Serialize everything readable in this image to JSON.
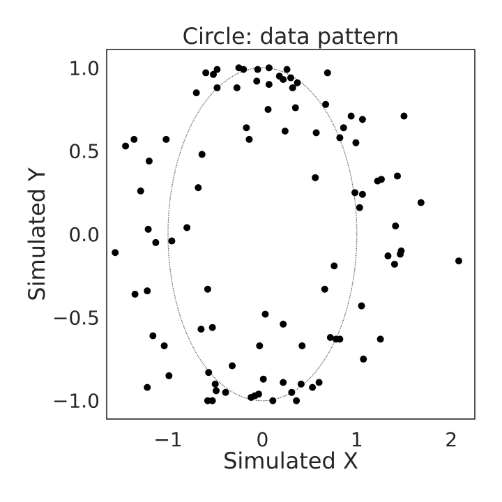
{
  "chart_data": {
    "type": "scatter",
    "title": "Circle: data pattern",
    "xlabel": "Simulated X",
    "ylabel": "Simulated Y",
    "xlim": [
      -1.65,
      2.25
    ],
    "ylim": [
      -1.11,
      1.11
    ],
    "x_ticks": [
      -1,
      0,
      1,
      2
    ],
    "y_ticks": [
      -1.0,
      -0.5,
      0.0,
      0.5,
      1.0
    ],
    "x_tick_labels": [
      "−1",
      "0",
      "1",
      "2"
    ],
    "y_tick_labels": [
      "−1.0",
      "−0.5",
      "0.0",
      "0.5",
      "1.0"
    ],
    "grid": false,
    "legend": "none",
    "colors": {
      "points": "#000000",
      "ellipse": "#555555",
      "axes": "#262626"
    },
    "reference_curve": {
      "shape": "ellipse",
      "cx": 0,
      "cy": 0,
      "rx": 1.0,
      "ry": 1.0,
      "style": "dotted"
    },
    "points": [
      {
        "x": -0.6,
        "y": 0.97
      },
      {
        "x": -0.52,
        "y": 0.96
      },
      {
        "x": -0.48,
        "y": 0.99
      },
      {
        "x": -0.25,
        "y": 1.0
      },
      {
        "x": -0.2,
        "y": 0.99
      },
      {
        "x": -0.05,
        "y": 0.99
      },
      {
        "x": 0.07,
        "y": 1.0
      },
      {
        "x": 0.18,
        "y": 0.95
      },
      {
        "x": 0.26,
        "y": 0.99
      },
      {
        "x": 0.22,
        "y": 0.93
      },
      {
        "x": 0.3,
        "y": 0.94
      },
      {
        "x": 0.37,
        "y": 0.91
      },
      {
        "x": 0.69,
        "y": 0.97
      },
      {
        "x": -0.7,
        "y": 0.85
      },
      {
        "x": -0.48,
        "y": 0.88
      },
      {
        "x": -0.27,
        "y": 0.88
      },
      {
        "x": -0.06,
        "y": 0.92
      },
      {
        "x": 0.07,
        "y": 0.9
      },
      {
        "x": 0.32,
        "y": 0.88
      },
      {
        "x": 0.06,
        "y": 0.75
      },
      {
        "x": 0.35,
        "y": 0.76
      },
      {
        "x": 0.67,
        "y": 0.78
      },
      {
        "x": 0.94,
        "y": 0.71
      },
      {
        "x": 1.06,
        "y": 0.69
      },
      {
        "x": 1.5,
        "y": 0.71
      },
      {
        "x": -0.17,
        "y": 0.64
      },
      {
        "x": 0.24,
        "y": 0.62
      },
      {
        "x": 0.57,
        "y": 0.61
      },
      {
        "x": 0.86,
        "y": 0.64
      },
      {
        "x": 0.82,
        "y": 0.58
      },
      {
        "x": -0.14,
        "y": 0.57
      },
      {
        "x": -1.02,
        "y": 0.57
      },
      {
        "x": -1.36,
        "y": 0.57
      },
      {
        "x": -1.45,
        "y": 0.53
      },
      {
        "x": 0.99,
        "y": 0.55
      },
      {
        "x": -0.64,
        "y": 0.48
      },
      {
        "x": -1.2,
        "y": 0.44
      },
      {
        "x": 0.56,
        "y": 0.34
      },
      {
        "x": 1.22,
        "y": 0.32
      },
      {
        "x": 1.26,
        "y": 0.33
      },
      {
        "x": 1.43,
        "y": 0.35
      },
      {
        "x": -0.68,
        "y": 0.28
      },
      {
        "x": -1.29,
        "y": 0.26
      },
      {
        "x": 0.98,
        "y": 0.25
      },
      {
        "x": 1.06,
        "y": 0.24
      },
      {
        "x": 1.68,
        "y": 0.19
      },
      {
        "x": 1.03,
        "y": 0.16
      },
      {
        "x": 1.41,
        "y": 0.05
      },
      {
        "x": -0.8,
        "y": 0.04
      },
      {
        "x": -1.21,
        "y": 0.03
      },
      {
        "x": -0.96,
        "y": -0.04
      },
      {
        "x": -1.13,
        "y": -0.05
      },
      {
        "x": 1.47,
        "y": -0.1
      },
      {
        "x": 1.46,
        "y": -0.12
      },
      {
        "x": -1.56,
        "y": -0.11
      },
      {
        "x": 1.33,
        "y": -0.13
      },
      {
        "x": 2.08,
        "y": -0.16
      },
      {
        "x": 1.4,
        "y": -0.18
      },
      {
        "x": 0.76,
        "y": -0.19
      },
      {
        "x": -0.58,
        "y": -0.33
      },
      {
        "x": 0.66,
        "y": -0.33
      },
      {
        "x": -1.22,
        "y": -0.34
      },
      {
        "x": -1.35,
        "y": -0.36
      },
      {
        "x": 1.05,
        "y": -0.43
      },
      {
        "x": 0.03,
        "y": -0.48
      },
      {
        "x": 0.22,
        "y": -0.54
      },
      {
        "x": -0.53,
        "y": -0.56
      },
      {
        "x": -0.65,
        "y": -0.57
      },
      {
        "x": 0.72,
        "y": -0.62
      },
      {
        "x": 0.78,
        "y": -0.63
      },
      {
        "x": 0.82,
        "y": -0.63
      },
      {
        "x": 1.25,
        "y": -0.63
      },
      {
        "x": -1.16,
        "y": -0.61
      },
      {
        "x": -1.04,
        "y": -0.67
      },
      {
        "x": -0.03,
        "y": -0.67
      },
      {
        "x": 0.42,
        "y": -0.67
      },
      {
        "x": 1.07,
        "y": -0.75
      },
      {
        "x": -0.32,
        "y": -0.79
      },
      {
        "x": -0.57,
        "y": -0.83
      },
      {
        "x": -0.99,
        "y": -0.85
      },
      {
        "x": 0.01,
        "y": -0.87
      },
      {
        "x": -0.5,
        "y": -0.9
      },
      {
        "x": 0.22,
        "y": -0.89
      },
      {
        "x": 0.41,
        "y": -0.9
      },
      {
        "x": 0.6,
        "y": -0.89
      },
      {
        "x": 0.53,
        "y": -0.92
      },
      {
        "x": -1.22,
        "y": -0.92
      },
      {
        "x": -0.49,
        "y": -0.94
      },
      {
        "x": -0.39,
        "y": -0.95
      },
      {
        "x": 0.31,
        "y": -0.95
      },
      {
        "x": -0.12,
        "y": -0.98
      },
      {
        "x": -0.08,
        "y": -0.97
      },
      {
        "x": -0.04,
        "y": -0.96
      },
      {
        "x": -0.58,
        "y": -1.0
      },
      {
        "x": -0.53,
        "y": -1.0
      },
      {
        "x": 0.11,
        "y": -1.0
      },
      {
        "x": 0.36,
        "y": -1.0
      }
    ]
  }
}
